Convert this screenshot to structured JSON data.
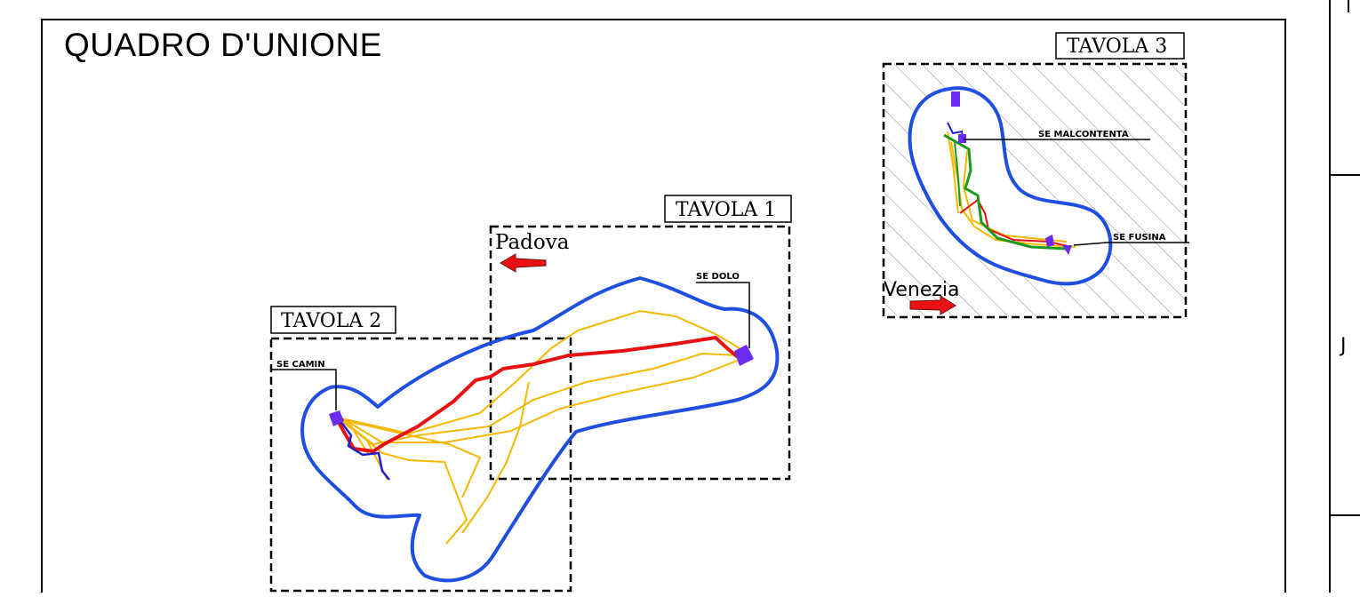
{
  "title": "QUADRO D'UNIONE",
  "sheets": [
    {
      "id": "tavola-1",
      "label": "TAVOLA 1"
    },
    {
      "id": "tavola-2",
      "label": "TAVOLA 2"
    },
    {
      "id": "tavola-3",
      "label": "TAVOLA 3"
    }
  ],
  "substations": [
    {
      "id": "se-dolo",
      "label": "SE DOLO"
    },
    {
      "id": "se-camin",
      "label": "SE CAMIN"
    },
    {
      "id": "se-malcontenta",
      "label": "SE MALCONTENTA"
    },
    {
      "id": "se-fusina",
      "label": "SE FUSINA"
    }
  ],
  "directions": [
    {
      "id": "padova",
      "label": "Padova",
      "arrow": "left"
    },
    {
      "id": "venezia",
      "label": "Venezia",
      "arrow": "right"
    }
  ],
  "right_margin_mark": "J",
  "colors": {
    "buffer": "#1f4fe0",
    "main_route": "#e81010",
    "alt_routes": "#f5b800",
    "green_route": "#1a9a1a",
    "substation": "#6a2cf0",
    "hatch": "#8a8a8a",
    "arrow": "#e81010"
  }
}
